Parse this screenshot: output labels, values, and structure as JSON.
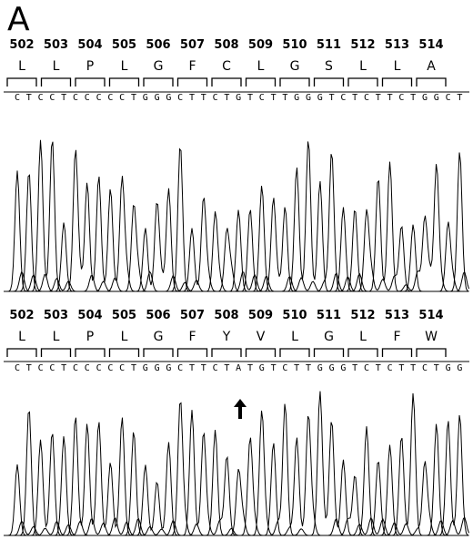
{
  "panel_label": "A",
  "trace_top": {
    "codon_numbers": [
      "502",
      "503",
      "504",
      "505",
      "506",
      "507",
      "508",
      "509",
      "510",
      "511",
      "512",
      "513",
      "514"
    ],
    "amino_acids": [
      "L",
      "L",
      "P",
      "L",
      "G",
      "F",
      "C",
      "L",
      "G",
      "S",
      "L",
      "L",
      "A"
    ],
    "bases": [
      "C",
      "T",
      "C",
      "C",
      "T",
      "C",
      "C",
      "C",
      "C",
      "C",
      "T",
      "G",
      "G",
      "G",
      "C",
      "T",
      "T",
      "C",
      "T",
      "G",
      "T",
      "C",
      "T",
      "T",
      "G",
      "G",
      "G",
      "T",
      "C",
      "T",
      "C",
      "T",
      "T",
      "C",
      "T",
      "G",
      "G",
      "C",
      "T"
    ]
  },
  "trace_bottom": {
    "codon_numbers": [
      "502",
      "503",
      "504",
      "505",
      "506",
      "507",
      "508",
      "509",
      "510",
      "511",
      "512",
      "513",
      "514"
    ],
    "amino_acids": [
      "L",
      "L",
      "P",
      "L",
      "G",
      "F",
      "Y",
      "V",
      "L",
      "G",
      "L",
      "F",
      "W"
    ],
    "bases": [
      "C",
      "T",
      "C",
      "C",
      "T",
      "C",
      "C",
      "C",
      "C",
      "C",
      "T",
      "G",
      "G",
      "G",
      "C",
      "T",
      "T",
      "C",
      "T",
      "A",
      "T",
      "G",
      "T",
      "C",
      "T",
      "T",
      "G",
      "G",
      "G",
      "T",
      "C",
      "T",
      "C",
      "T",
      "T",
      "C",
      "T",
      "G",
      "G"
    ],
    "mutation_marker": "arrow-up"
  }
}
